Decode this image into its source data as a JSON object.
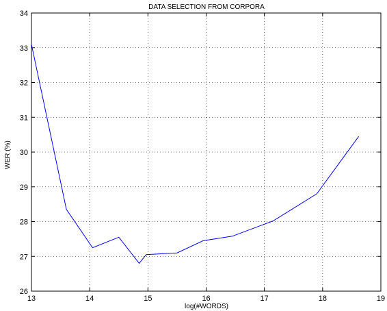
{
  "chart_data": {
    "type": "line",
    "title": "DATA SELECTION FROM CORPORA",
    "xlabel": "log(#WORDS)",
    "ylabel": "WER (%)",
    "xlim": [
      13,
      19
    ],
    "ylim": [
      26,
      34
    ],
    "xticks": [
      "13",
      "14",
      "15",
      "16",
      "17",
      "18",
      "19"
    ],
    "yticks": [
      "26",
      "27",
      "28",
      "29",
      "30",
      "31",
      "32",
      "33",
      "34"
    ],
    "grid": true,
    "legend": "none",
    "series": [
      {
        "color": "#0000ff",
        "x": [
          13.0,
          13.6,
          14.05,
          14.5,
          14.85,
          14.97,
          15.5,
          15.95,
          16.45,
          17.15,
          17.9,
          18.62
        ],
        "y": [
          33.1,
          28.35,
          27.25,
          27.55,
          26.8,
          27.05,
          27.1,
          27.45,
          27.58,
          28.02,
          28.8,
          30.45
        ]
      }
    ]
  }
}
